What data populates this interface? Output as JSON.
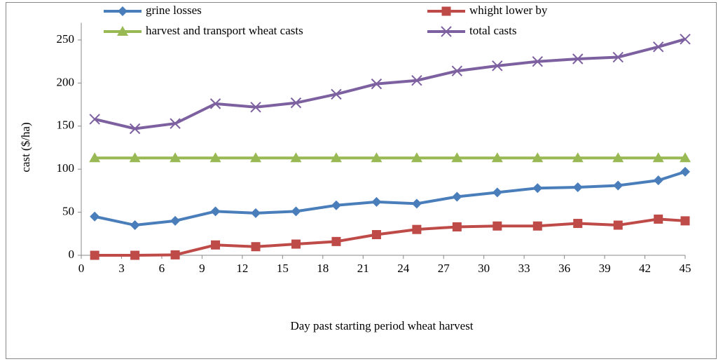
{
  "chart_data": {
    "type": "line",
    "xlabel": "Day past starting period wheat harvest",
    "ylabel": "cast ($/ha)",
    "x": [
      1,
      4,
      7,
      10,
      13,
      16,
      19,
      22,
      25,
      28,
      31,
      34,
      37,
      40,
      43,
      45
    ],
    "series": [
      {
        "name": "grine losses",
        "color": "#4a7ebb",
        "marker": "diamond",
        "values": [
          45,
          35,
          40,
          51,
          49,
          51,
          58,
          62,
          60,
          68,
          73,
          78,
          79,
          81,
          87,
          97
        ]
      },
      {
        "name": "whight lower by",
        "color": "#be4b48",
        "marker": "square",
        "values": [
          0,
          0,
          0.5,
          12,
          10,
          13,
          16,
          24,
          30,
          33,
          34,
          34,
          37,
          35,
          42,
          40
        ]
      },
      {
        "name": "harvest and transport wheat casts",
        "color": "#98b954",
        "marker": "triangle",
        "values": [
          113,
          113,
          113,
          113,
          113,
          113,
          113,
          113,
          113,
          113,
          113,
          113,
          113,
          113,
          113,
          113
        ]
      },
      {
        "name": "total casts",
        "color": "#7d60a0",
        "marker": "x",
        "values": [
          158,
          147,
          153,
          176,
          172,
          177,
          187,
          199,
          203,
          214,
          220,
          225,
          228,
          230,
          242,
          251
        ]
      }
    ],
    "xlim": [
      0,
      45
    ],
    "xticks": [
      0,
      3,
      6,
      9,
      12,
      15,
      18,
      21,
      24,
      27,
      30,
      33,
      36,
      39,
      42,
      45
    ],
    "ylim": [
      0,
      270
    ],
    "yticks": [
      0,
      50,
      100,
      150,
      200,
      250
    ],
    "legend": "top"
  }
}
